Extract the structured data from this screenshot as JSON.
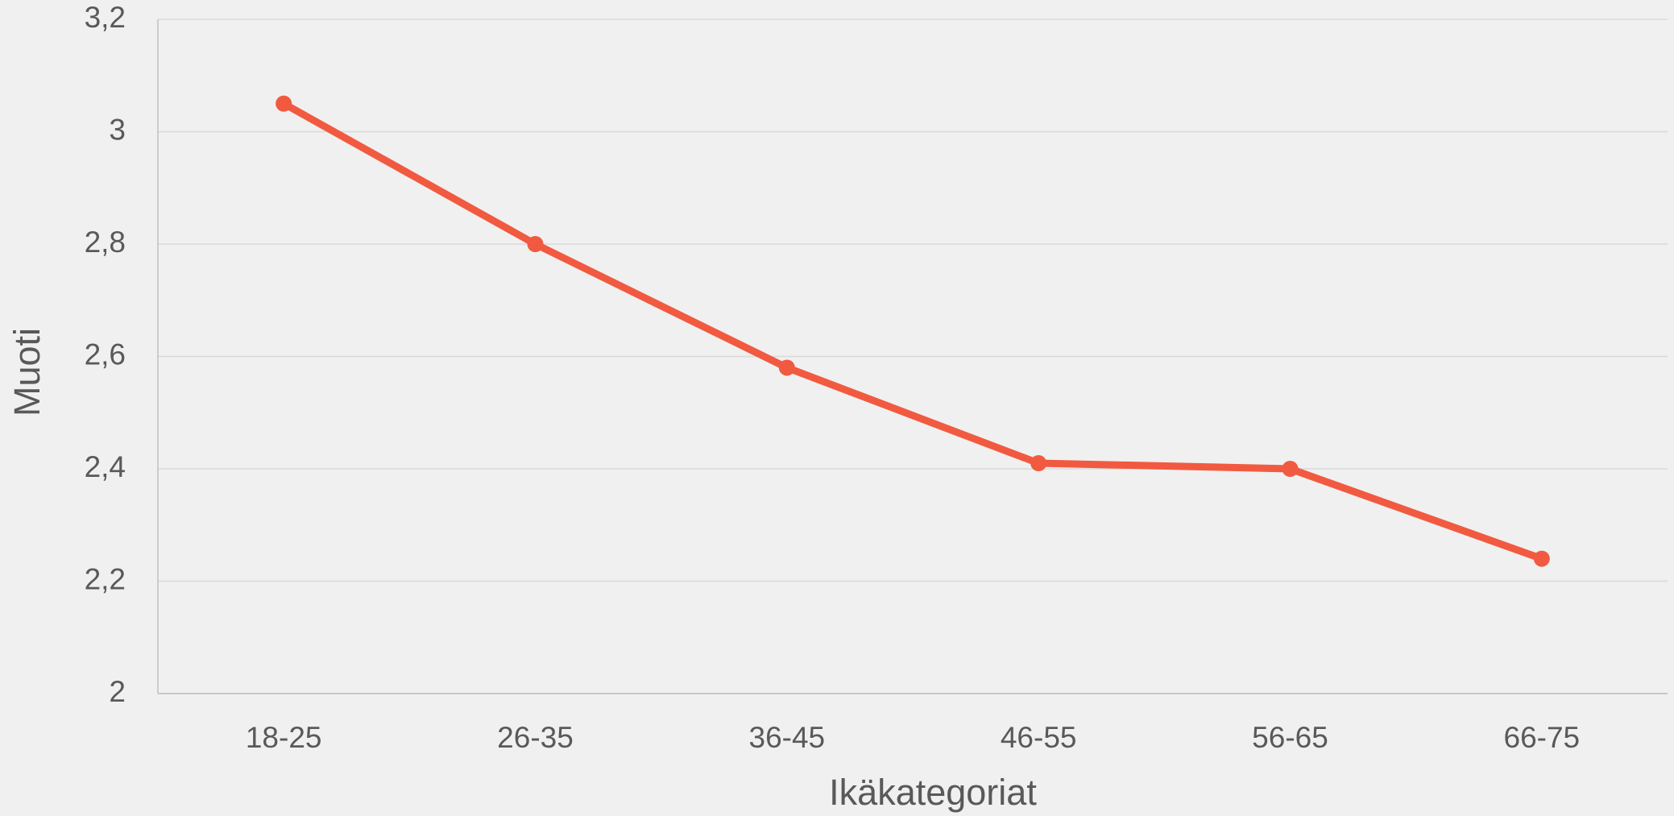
{
  "chart_data": {
    "type": "line",
    "x_label": "Ikäkategoriat",
    "y_label": "Muoti",
    "categories": [
      "18-25",
      "26-35",
      "36-45",
      "46-55",
      "56-65",
      "66-75"
    ],
    "series": [
      {
        "color": "#f15a40",
        "values": [
          3.05,
          2.8,
          2.58,
          2.41,
          2.4,
          2.24
        ]
      }
    ],
    "ylim": [
      2,
      3.2
    ],
    "yticks": [
      2,
      {
        "value": 2.2,
        "label": "2,2"
      },
      {
        "value": 2.4,
        "label": "2,4"
      },
      {
        "value": 2.6,
        "label": "2,6"
      },
      {
        "value": 2.8,
        "label": "2,8"
      },
      3,
      {
        "value": 3.2,
        "label": "3,2"
      }
    ],
    "grid": true
  }
}
